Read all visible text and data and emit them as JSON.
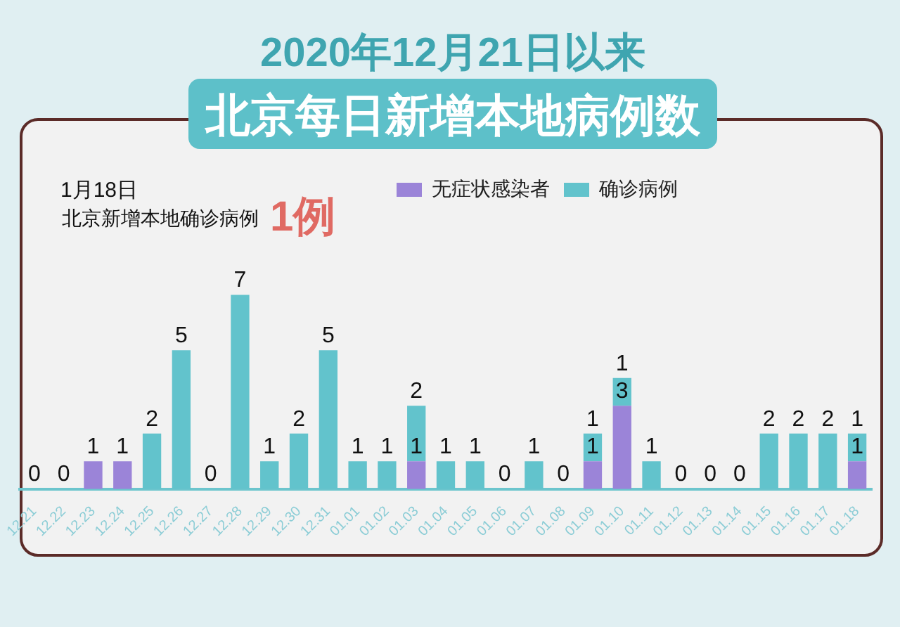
{
  "chart_data": {
    "type": "bar",
    "title": "2020年12月21日以来",
    "subtitle": "北京每日新增本地病例数",
    "annotations": [
      "1月18日",
      "北京新增本地确诊病例",
      "1例"
    ],
    "categories": [
      "12.21",
      "12.22",
      "12.23",
      "12.24",
      "12.25",
      "12.26",
      "12.27",
      "12.28",
      "12.29",
      "12.30",
      "12.31",
      "01.01",
      "01.02",
      "01.03",
      "01.04",
      "01.05",
      "01.06",
      "01.07",
      "01.08",
      "01.09",
      "01.10",
      "01.11",
      "01.12",
      "01.13",
      "01.14",
      "01.15",
      "01.16",
      "01.17",
      "01.18"
    ],
    "series": [
      {
        "name": "无症状感染者",
        "color": "#9b84d8",
        "values": [
          0,
          0,
          1,
          1,
          0,
          0,
          0,
          0,
          0,
          0,
          0,
          0,
          0,
          1,
          0,
          0,
          0,
          0,
          0,
          1,
          3,
          0,
          0,
          0,
          0,
          0,
          0,
          0,
          1
        ],
        "value_labels": [
          null,
          null,
          "1",
          "1",
          null,
          null,
          null,
          null,
          null,
          null,
          null,
          null,
          null,
          "1",
          null,
          null,
          null,
          null,
          null,
          "1",
          "3",
          null,
          null,
          null,
          null,
          null,
          null,
          null,
          "1"
        ]
      },
      {
        "name": "确诊病例",
        "color": "#62c3cc",
        "values": [
          0,
          0,
          0,
          0,
          2,
          5,
          0,
          7,
          1,
          2,
          5,
          1,
          1,
          2,
          1,
          1,
          0,
          1,
          0,
          1,
          1,
          1,
          0,
          0,
          0,
          2,
          2,
          2,
          1
        ],
        "value_labels": [
          "0",
          "0",
          null,
          null,
          "2",
          "5",
          "0",
          "7",
          "1",
          "2",
          "5",
          "1",
          "1",
          "2",
          "1",
          "1",
          "0",
          "1",
          "0",
          "1",
          "1",
          "1",
          "0",
          "0",
          "0",
          "2",
          "2",
          "2",
          "1"
        ]
      }
    ],
    "stacked": true,
    "legend": "top",
    "tick_labels": "x"
  }
}
